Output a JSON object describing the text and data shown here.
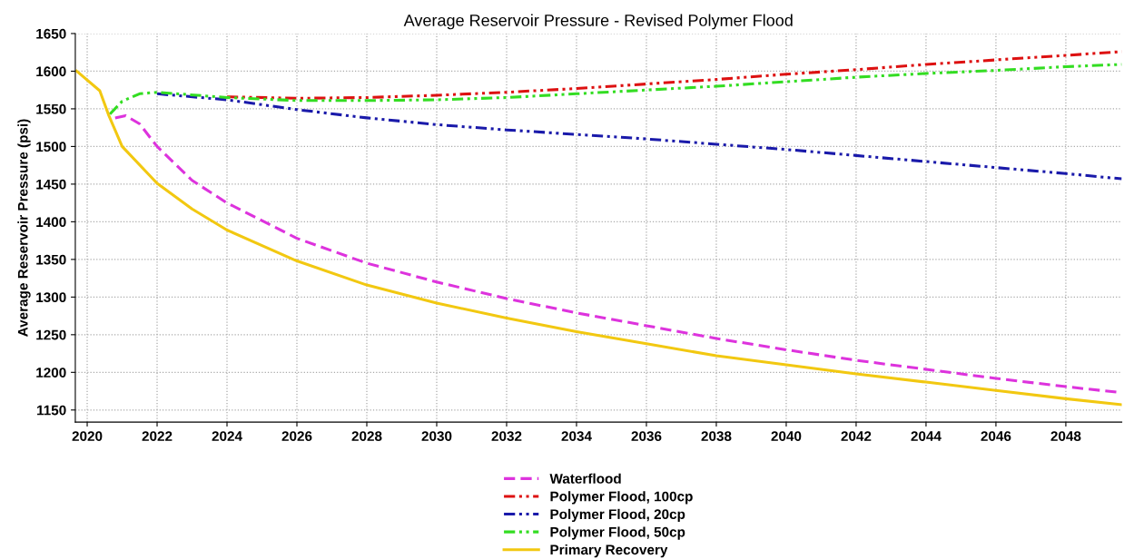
{
  "chart_data": {
    "type": "line",
    "title": "Average Reservoir Pressure - Revised Polymer Flood",
    "ylabel": "Average Reservoir Pressure (psi)",
    "xlim": [
      2019.66,
      2049.6
    ],
    "ylim": [
      1134,
      1650
    ],
    "xticks": [
      2020,
      2022,
      2024,
      2026,
      2028,
      2030,
      2032,
      2034,
      2036,
      2038,
      2040,
      2042,
      2044,
      2046,
      2048
    ],
    "yticks": [
      1150,
      1200,
      1250,
      1300,
      1350,
      1400,
      1450,
      1500,
      1550,
      1600,
      1650
    ],
    "grid": true,
    "legend": "bottom",
    "series": [
      {
        "name": "Waterflood",
        "color": "#dd33dd",
        "line_style": "dashed",
        "x": [
          2020.8,
          2021.1,
          2021.5,
          2022,
          2023,
          2024,
          2026,
          2028,
          2030,
          2032,
          2034,
          2036,
          2038,
          2040,
          2042,
          2044,
          2046,
          2048,
          2049.6
        ],
        "values": [
          1538,
          1541,
          1530,
          1500,
          1455,
          1425,
          1378,
          1345,
          1320,
          1298,
          1279,
          1262,
          1245,
          1230,
          1216,
          1204,
          1192,
          1181,
          1173
        ]
      },
      {
        "name": "Polymer Flood, 100cp",
        "color": "#dd1111",
        "line_style": "dotted",
        "x": [
          2024,
          2026,
          2028,
          2030,
          2032,
          2034,
          2036,
          2038,
          2040,
          2042,
          2044,
          2046,
          2048,
          2049.6
        ],
        "values": [
          1566,
          1564,
          1565,
          1568,
          1572,
          1577,
          1583,
          1589,
          1596,
          1602,
          1609,
          1615,
          1621,
          1626
        ]
      },
      {
        "name": "Polymer Flood, 20cp",
        "color": "#1a1aaa",
        "line_style": "dotted",
        "x": [
          2022,
          2024,
          2026,
          2028,
          2030,
          2032,
          2034,
          2036,
          2038,
          2040,
          2042,
          2044,
          2046,
          2048,
          2049.6
        ],
        "values": [
          1570,
          1562,
          1549,
          1538,
          1529,
          1522,
          1516,
          1510,
          1503,
          1496,
          1488,
          1480,
          1472,
          1464,
          1457
        ]
      },
      {
        "name": "Polymer Flood, 50cp",
        "color": "#33dd22",
        "line_style": "dotted",
        "x": [
          2020.65,
          2021,
          2021.5,
          2022,
          2024,
          2026,
          2028,
          2030,
          2032,
          2034,
          2036,
          2038,
          2040,
          2042,
          2044,
          2046,
          2048,
          2049.6
        ],
        "values": [
          1543,
          1560,
          1570,
          1572,
          1565,
          1561,
          1561,
          1562,
          1565,
          1570,
          1575,
          1580,
          1586,
          1592,
          1597,
          1601,
          1606,
          1609
        ]
      },
      {
        "name": "Primary Recovery",
        "color": "#f2c811",
        "line_style": "solid",
        "x": [
          2019.7,
          2020.36,
          2020.62,
          2021,
          2022,
          2023,
          2024,
          2026,
          2028,
          2030,
          2032,
          2034,
          2036,
          2038,
          2040,
          2042,
          2044,
          2046,
          2048,
          2049.6
        ],
        "values": [
          1600,
          1574,
          1541,
          1500,
          1451,
          1417,
          1389,
          1348,
          1316,
          1292,
          1272,
          1254,
          1238,
          1222,
          1210,
          1198,
          1187,
          1176,
          1165,
          1157
        ]
      }
    ]
  }
}
